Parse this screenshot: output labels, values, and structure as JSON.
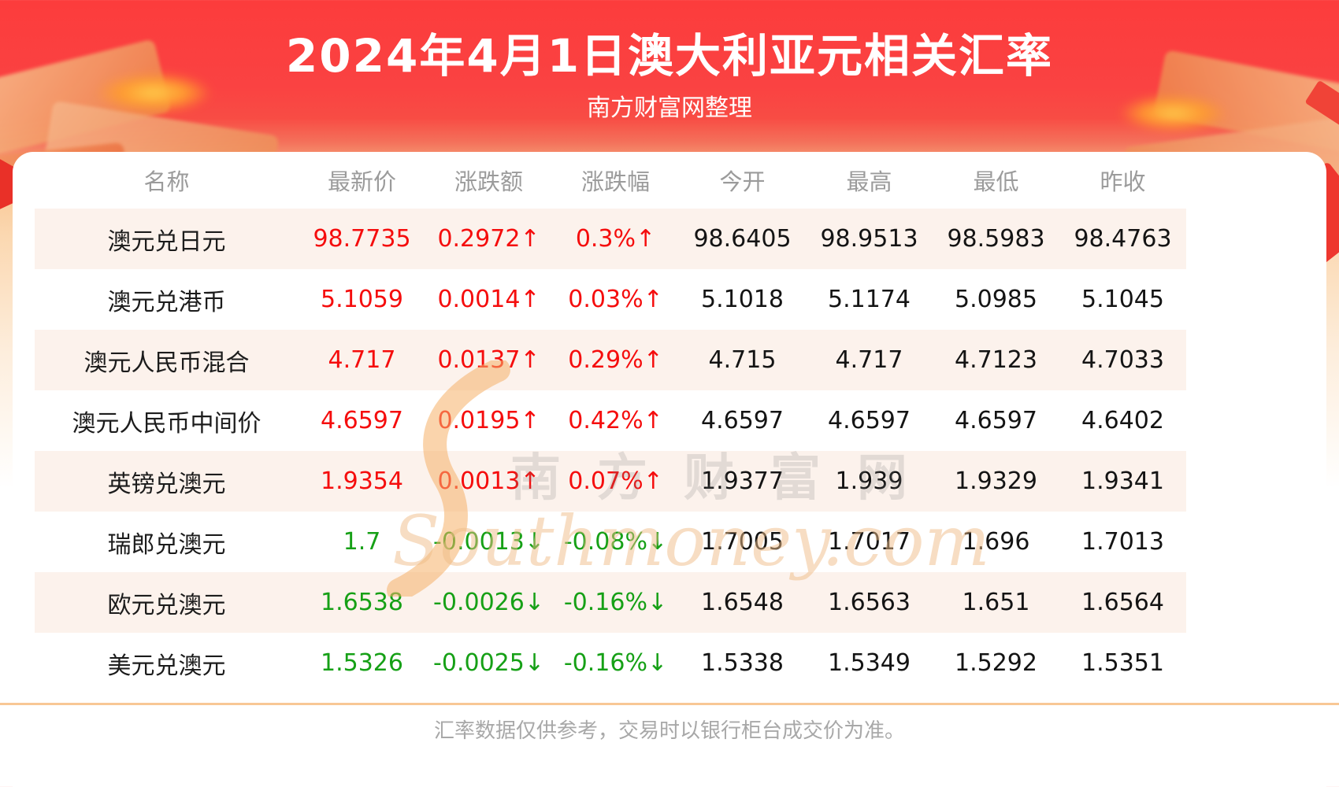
{
  "page": {
    "title": "2024年4月1日澳大利亚元相关汇率",
    "subtitle": "南方财富网整理",
    "footer_note": "汇率数据仅供参考，交易时以银行柜台成交价为准。",
    "watermark_cn": "南方财富网",
    "watermark_en": "Southmoney.com"
  },
  "colors": {
    "header_red": "#fb3f3f",
    "up": "#f50d0d",
    "down": "#16a016",
    "row_alt": "#fcf2ec",
    "divider": "#f8c795",
    "header_text": "#9b9b9b"
  },
  "table": {
    "columns": [
      "名称",
      "最新价",
      "涨跌额",
      "涨跌幅",
      "今开",
      "最高",
      "最低",
      "昨收"
    ],
    "rows": [
      {
        "name": "澳元兑日元",
        "latest": "98.7735",
        "change": "0.2972↑",
        "change_pct": "0.3%↑",
        "open": "98.6405",
        "high": "98.9513",
        "low": "98.5983",
        "prev_close": "98.4763",
        "trend": "up"
      },
      {
        "name": "澳元兑港币",
        "latest": "5.1059",
        "change": "0.0014↑",
        "change_pct": "0.03%↑",
        "open": "5.1018",
        "high": "5.1174",
        "low": "5.0985",
        "prev_close": "5.1045",
        "trend": "up"
      },
      {
        "name": "澳元人民币混合",
        "latest": "4.717",
        "change": "0.0137↑",
        "change_pct": "0.29%↑",
        "open": "4.715",
        "high": "4.717",
        "low": "4.7123",
        "prev_close": "4.7033",
        "trend": "up"
      },
      {
        "name": "澳元人民币中间价",
        "latest": "4.6597",
        "change": "0.0195↑",
        "change_pct": "0.42%↑",
        "open": "4.6597",
        "high": "4.6597",
        "low": "4.6597",
        "prev_close": "4.6402",
        "trend": "up"
      },
      {
        "name": "英镑兑澳元",
        "latest": "1.9354",
        "change": "0.0013↑",
        "change_pct": "0.07%↑",
        "open": "1.9377",
        "high": "1.939",
        "low": "1.9329",
        "prev_close": "1.9341",
        "trend": "up"
      },
      {
        "name": "瑞郎兑澳元",
        "latest": "1.7",
        "change": "-0.0013↓",
        "change_pct": "-0.08%↓",
        "open": "1.7005",
        "high": "1.7017",
        "low": "1.696",
        "prev_close": "1.7013",
        "trend": "down"
      },
      {
        "name": "欧元兑澳元",
        "latest": "1.6538",
        "change": "-0.0026↓",
        "change_pct": "-0.16%↓",
        "open": "1.6548",
        "high": "1.6563",
        "low": "1.651",
        "prev_close": "1.6564",
        "trend": "down"
      },
      {
        "name": "美元兑澳元",
        "latest": "1.5326",
        "change": "-0.0025↓",
        "change_pct": "-0.16%↓",
        "open": "1.5338",
        "high": "1.5349",
        "low": "1.5292",
        "prev_close": "1.5351",
        "trend": "down"
      }
    ]
  },
  "chart_data": {
    "type": "table",
    "title": "2024年4月1日澳大利亚元相关汇率",
    "columns": [
      "名称",
      "最新价",
      "涨跌额",
      "涨跌幅",
      "今开",
      "最高",
      "最低",
      "昨收"
    ],
    "rows": [
      [
        "澳元兑日元",
        98.7735,
        0.2972,
        "0.3%",
        98.6405,
        98.9513,
        98.5983,
        98.4763
      ],
      [
        "澳元兑港币",
        5.1059,
        0.0014,
        "0.03%",
        5.1018,
        5.1174,
        5.0985,
        5.1045
      ],
      [
        "澳元人民币混合",
        4.717,
        0.0137,
        "0.29%",
        4.715,
        4.717,
        4.7123,
        4.7033
      ],
      [
        "澳元人民币中间价",
        4.6597,
        0.0195,
        "0.42%",
        4.6597,
        4.6597,
        4.6597,
        4.6402
      ],
      [
        "英镑兑澳元",
        1.9354,
        0.0013,
        "0.07%",
        1.9377,
        1.939,
        1.9329,
        1.9341
      ],
      [
        "瑞郎兑澳元",
        1.7,
        -0.0013,
        "-0.08%",
        1.7005,
        1.7017,
        1.696,
        1.7013
      ],
      [
        "欧元兑澳元",
        1.6538,
        -0.0026,
        "-0.16%",
        1.6548,
        1.6563,
        1.651,
        1.6564
      ],
      [
        "美元兑澳元",
        1.5326,
        -0.0025,
        "-0.16%",
        1.5338,
        1.5349,
        1.5292,
        1.5351
      ]
    ]
  }
}
